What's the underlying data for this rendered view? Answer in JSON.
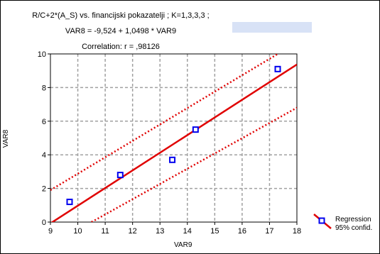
{
  "title": {
    "line1": "R/C+2*(A_S) vs. financijski pokazatelji ; K=1,3,3,3 ;",
    "line2": "VAR8 = -9,524 + 1,0498 * VAR9",
    "line3": "Correlation: r = ,98126"
  },
  "legend": {
    "line1": "Regression",
    "line2": "95% confid."
  },
  "colors": {
    "regression": "#e00000",
    "points": "#0000ee",
    "grid": "#a0a0a0",
    "title_highlight": "#d8e2f6"
  },
  "chart_data": {
    "type": "scatter",
    "xlabel": "VAR9",
    "ylabel": "VAR8",
    "xlim": [
      9,
      18
    ],
    "ylim": [
      0,
      10
    ],
    "xticks": [
      9,
      10,
      11,
      12,
      13,
      14,
      15,
      16,
      17,
      18
    ],
    "yticks": [
      0,
      2,
      4,
      6,
      8,
      10
    ],
    "grid": true,
    "legend_position": "bottom-right",
    "points": [
      {
        "x": 9.7,
        "y": 1.2
      },
      {
        "x": 11.55,
        "y": 2.8
      },
      {
        "x": 13.45,
        "y": 3.7
      },
      {
        "x": 14.3,
        "y": 5.5
      },
      {
        "x": 17.3,
        "y": 9.1
      }
    ],
    "regression": {
      "intercept": -9.524,
      "slope": 1.0498
    },
    "confidence_band": {
      "upper": [
        {
          "x": 9,
          "y": 1.9
        },
        {
          "x": 17.3,
          "y": 10
        }
      ],
      "lower": [
        {
          "x": 10.5,
          "y": 0
        },
        {
          "x": 18,
          "y": 6.8
        }
      ]
    }
  }
}
